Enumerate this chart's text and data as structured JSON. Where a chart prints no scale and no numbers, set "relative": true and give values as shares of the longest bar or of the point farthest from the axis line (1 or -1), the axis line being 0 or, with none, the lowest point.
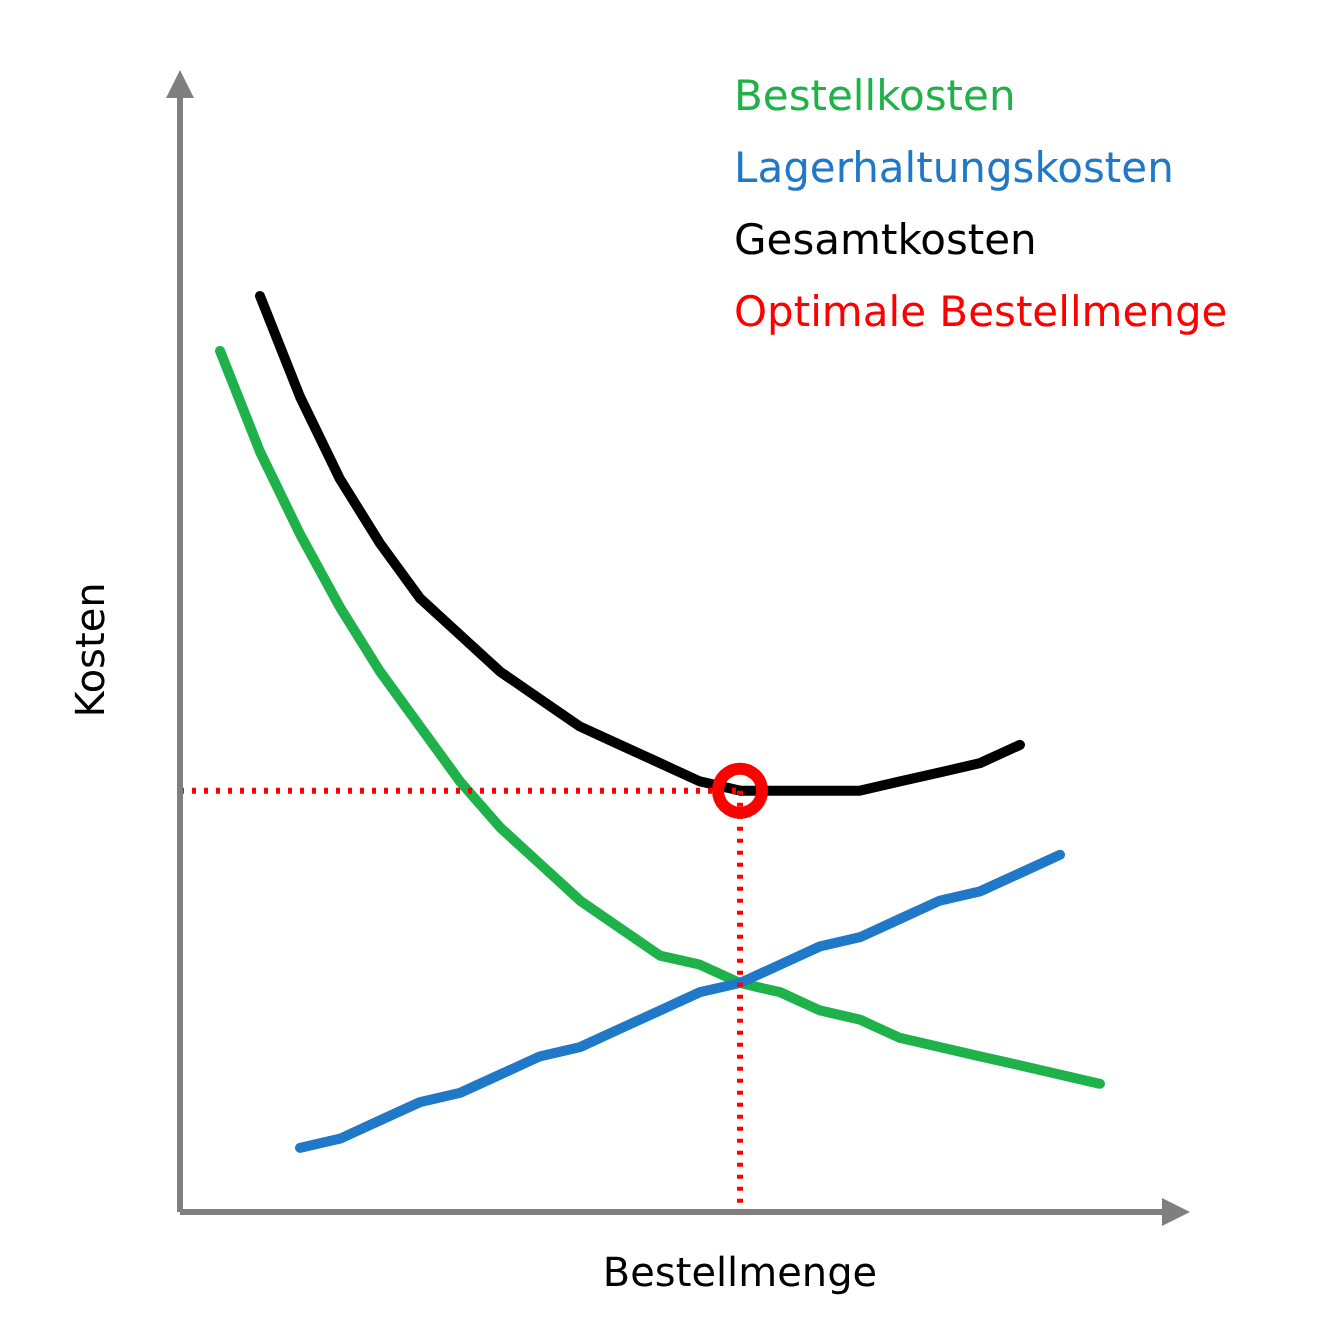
{
  "chart_data": {
    "type": "line",
    "xlabel": "Bestellmenge",
    "ylabel": "Kosten",
    "relative": true,
    "ref_lines": [
      {
        "axis": "y",
        "value": 0.46,
        "color": "#ff0000",
        "line_style": "dotted"
      }
    ],
    "categories": [
      null,
      null,
      null,
      null,
      null,
      null,
      null,
      null,
      null,
      null,
      null,
      null,
      null,
      null,
      null,
      null,
      null,
      null,
      null,
      null,
      null,
      null,
      null
    ],
    "series": [
      {
        "name": "Bestellkosten",
        "color": "#1fb24a",
        "values": [
          0.94,
          0.83,
          0.74,
          0.66,
          0.59,
          0.53,
          0.47,
          0.42,
          0.38,
          0.34,
          0.31,
          0.28,
          0.27,
          0.25,
          0.24,
          0.22,
          0.21,
          0.19,
          0.18,
          0.17,
          0.16,
          0.15,
          0.14
        ]
      },
      {
        "name": "Lagerhaltungskosten",
        "color": "#1f78c8",
        "values": [
          null,
          null,
          0.07,
          0.08,
          0.1,
          0.12,
          0.13,
          0.15,
          0.17,
          0.18,
          0.2,
          0.22,
          0.24,
          0.25,
          0.27,
          0.29,
          0.3,
          0.32,
          0.34,
          0.35,
          0.37,
          0.39,
          null
        ]
      },
      {
        "name": "Gesamtkosten",
        "color": "#000000",
        "values": [
          null,
          1.0,
          0.89,
          0.8,
          0.73,
          0.67,
          0.63,
          0.59,
          0.56,
          0.53,
          0.51,
          0.49,
          0.47,
          0.46,
          0.46,
          0.46,
          0.46,
          0.47,
          0.48,
          0.49,
          0.51,
          null,
          null
        ]
      },
      {
        "name": "Optimale Bestellmenge",
        "color": "#ff0000",
        "marker": "circle",
        "line_style": "dotted",
        "values": [
          null,
          null,
          null,
          null,
          null,
          null,
          null,
          null,
          null,
          null,
          null,
          null,
          null,
          0.46,
          null,
          null,
          null,
          null,
          null,
          null,
          null,
          null,
          null
        ]
      }
    ]
  }
}
